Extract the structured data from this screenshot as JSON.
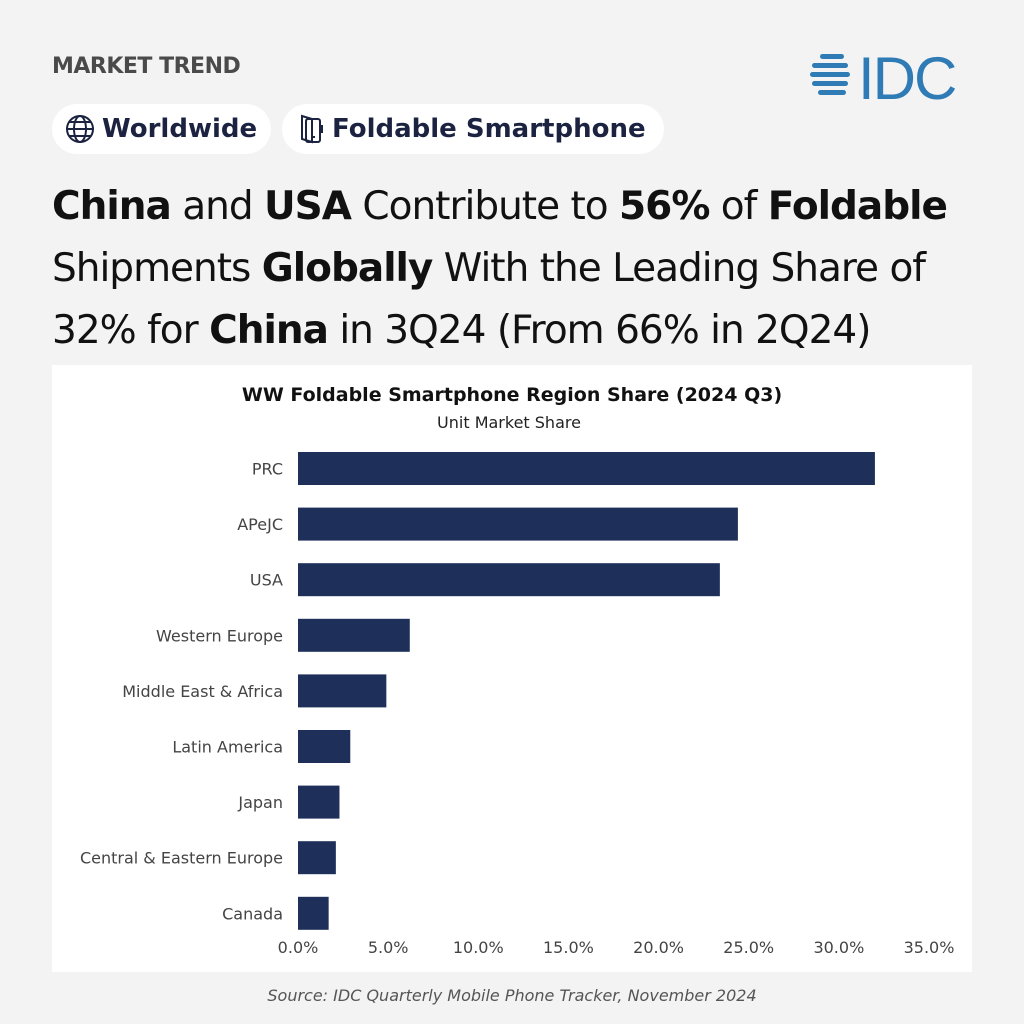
{
  "header": {
    "kicker": "MARKET TREND",
    "logo_text": "IDC",
    "brand_color": "#2e7bb5",
    "tags": [
      {
        "label": "Worldwide",
        "icon": "globe-icon"
      },
      {
        "label": "Foldable Smartphone",
        "icon": "foldable-phone-icon"
      }
    ]
  },
  "headline": [
    {
      "text": "China",
      "bold": true
    },
    {
      "text": " and ",
      "bold": false
    },
    {
      "text": "USA",
      "bold": true
    },
    {
      "text": " Contribute to ",
      "bold": false
    },
    {
      "text": "56%",
      "bold": true
    },
    {
      "text": " of ",
      "bold": false
    },
    {
      "text": "Foldable",
      "bold": true
    },
    {
      "text": " Shipments ",
      "bold": false
    },
    {
      "text": "Globally",
      "bold": true
    },
    {
      "text": " With the Leading Share of 32% for ",
      "bold": false
    },
    {
      "text": "China",
      "bold": true
    },
    {
      "text": " in 3Q24 (From 66% in 2Q24)",
      "bold": false
    }
  ],
  "chart_data": {
    "type": "bar",
    "orientation": "horizontal",
    "title": "WW Foldable Smartphone Region Share (2024 Q3)",
    "subtitle": "Unit Market Share",
    "categories": [
      "PRC",
      "APeJC",
      "USA",
      "Western Europe",
      "Middle East & Africa",
      "Latin America",
      "Japan",
      "Central & Eastern Europe",
      "Canada"
    ],
    "values": [
      32.0,
      24.4,
      23.4,
      6.2,
      4.9,
      2.9,
      2.3,
      2.1,
      1.7
    ],
    "xlim": [
      0,
      35
    ],
    "x_ticks": [
      "0.0%",
      "5.0%",
      "10.0%",
      "15.0%",
      "20.0%",
      "25.0%",
      "30.0%",
      "35.0%"
    ],
    "grid": false,
    "bar_color": "#1e3059"
  },
  "source": "Source: IDC Quarterly Mobile Phone Tracker, November 2024"
}
